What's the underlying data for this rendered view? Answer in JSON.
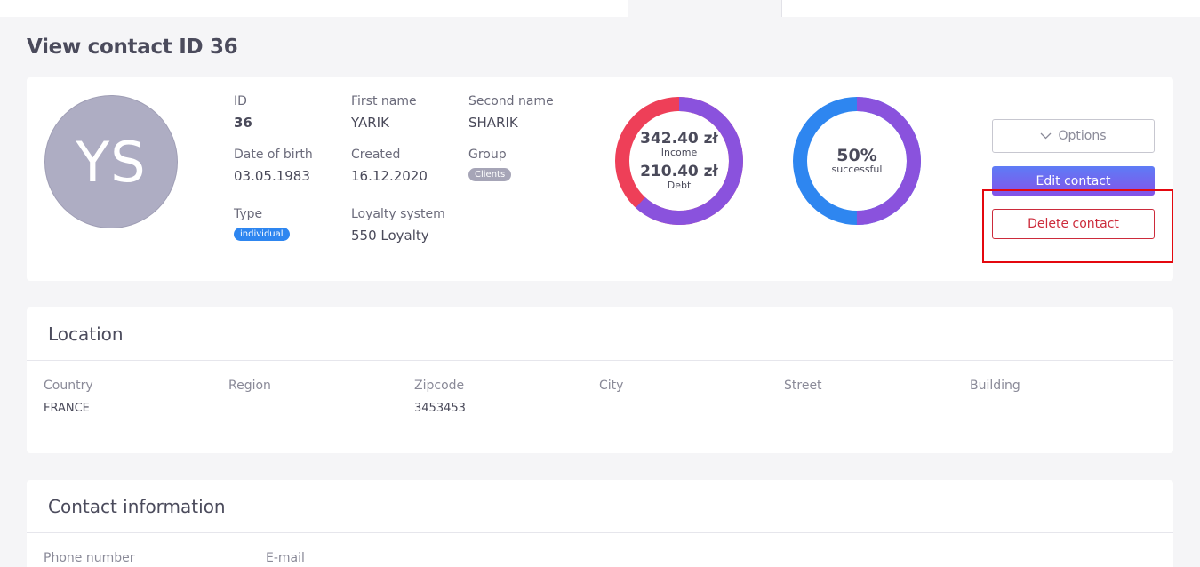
{
  "page": {
    "title_prefix": "View contact",
    "title_id": "ID 36"
  },
  "profile": {
    "avatar_initials": "YS",
    "id": {
      "label": "ID",
      "value": "36"
    },
    "first_name": {
      "label": "First name",
      "value": "YARIK"
    },
    "second_name": {
      "label": "Second name",
      "value": "SHARIK"
    },
    "date_of_birth": {
      "label": "Date of birth",
      "value": "03.05.1983"
    },
    "created": {
      "label": "Created",
      "value": "16.12.2020"
    },
    "group": {
      "label": "Group",
      "value": "Clients"
    },
    "type": {
      "label": "Type",
      "value": "individual"
    },
    "loyalty": {
      "label": "Loyalty system",
      "value": "550 Loyalty"
    }
  },
  "finance_chart": {
    "income_value": "342.40 zł",
    "income_label": "Income",
    "debt_value": "210.40 zł",
    "debt_label": "Debt",
    "income_fraction": 0.619,
    "colors": {
      "income": "#8a52dd",
      "debt": "#ee3f58"
    }
  },
  "success_chart": {
    "value": "50%",
    "label": "successful",
    "fraction": 0.5,
    "colors": {
      "success": "#8a52dd",
      "rest": "#2e86f0"
    }
  },
  "actions": {
    "options_label": "Options",
    "edit_label": "Edit contact",
    "delete_label": "Delete contact"
  },
  "location": {
    "title": "Location",
    "columns": [
      {
        "label": "Country",
        "value": "FRANCE"
      },
      {
        "label": "Region",
        "value": ""
      },
      {
        "label": "Zipcode",
        "value": "3453453"
      },
      {
        "label": "City",
        "value": ""
      },
      {
        "label": "Street",
        "value": ""
      },
      {
        "label": "Building",
        "value": ""
      }
    ]
  },
  "contact_info": {
    "title": "Contact information",
    "columns": [
      {
        "label": "Phone number"
      },
      {
        "label": "E-mail"
      }
    ]
  },
  "colors": {
    "accent_blue": "#2e86f0",
    "accent_purple": "#8a52dd",
    "danger": "#cc2b3b",
    "highlight": "#e4080f"
  }
}
